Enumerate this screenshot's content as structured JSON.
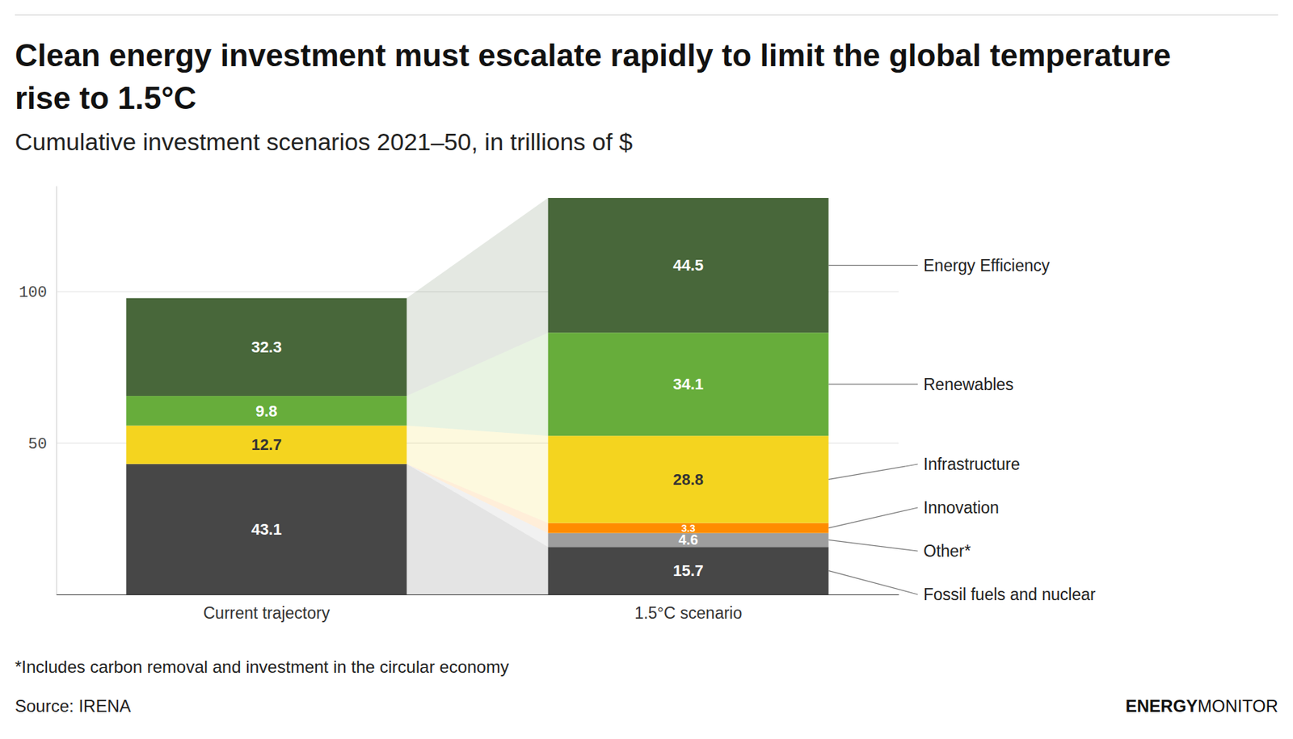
{
  "chart_data": {
    "type": "bar",
    "stacked": true,
    "data_labels": true,
    "grid": true,
    "title": "Clean energy investment must escalate rapidly to limit the global temperature rise to 1.5°C",
    "subtitle": "Cumulative investment scenarios 2021–50, in trillions of $",
    "footnote": "*Includes carbon removal and investment in the circular economy",
    "source": "Source: IRENA",
    "logo": [
      "ENERGY",
      "MONITOR"
    ],
    "categories": [
      "Current trajectory",
      "1.5°C scenario"
    ],
    "series": [
      {
        "name": "Fossil fuels and nuclear",
        "color": "#474747",
        "values": [
          43.1,
          15.7
        ]
      },
      {
        "name": "Other*",
        "color": "#9e9e9e",
        "values": [
          null,
          4.6
        ]
      },
      {
        "name": "Innovation",
        "color": "#ff8c00",
        "values": [
          null,
          3.3
        ]
      },
      {
        "name": "Infrastructure",
        "color": "#f4d41f",
        "values": [
          12.7,
          28.8
        ]
      },
      {
        "name": "Renewables",
        "color": "#67ad3b",
        "values": [
          9.8,
          34.1
        ]
      },
      {
        "name": "Energy Efficiency",
        "color": "#48673a",
        "values": [
          32.3,
          44.5
        ]
      }
    ],
    "ylim": [
      0,
      135
    ],
    "yticks": [
      50,
      100
    ]
  }
}
